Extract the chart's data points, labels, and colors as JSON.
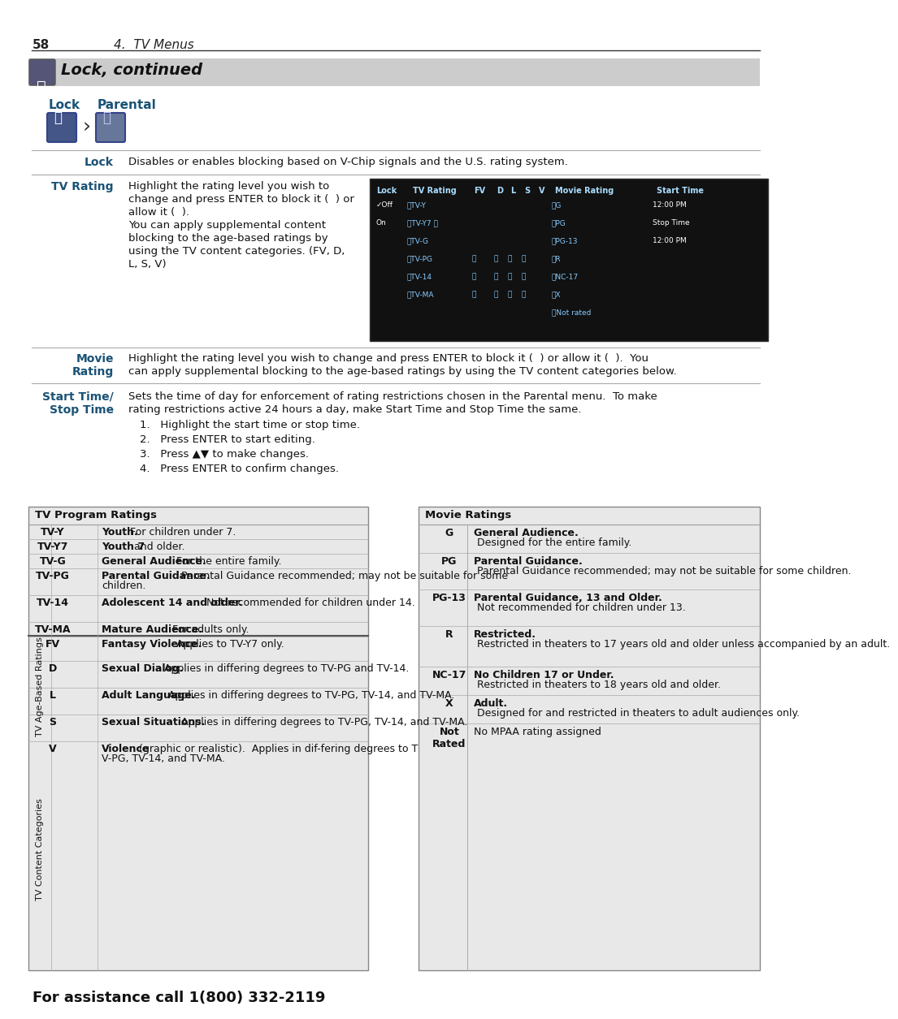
{
  "page_number": "58",
  "chapter": "4.  TV Menus",
  "section_title": "Lock, continued",
  "bg_color": "#ffffff",
  "header_bg": "#d8d8d8",
  "blue_color": "#1a5276",
  "dark_blue": "#1a3a5c",
  "subheader_bg": "#e8e8e8",
  "lock_label": "Lock",
  "parental_label": "Parental",
  "lock_text": "Disables or enables blocking based on V-Chip signals and the U.S. rating system.",
  "tv_rating_label": "TV Rating",
  "tv_rating_text1": "Highlight the rating level you wish to\nchange and press ENTER to block it (●) or\nallow it (●).\nYou can apply supplemental content\nblocking to the age-based ratings by\nusing the TV content categories. (FV, D,\nL, S, V)",
  "movie_rating_label": "Movie\nRating",
  "movie_rating_text": "Highlight the rating level you wish to change and press ENTER to block it (●) or allow it (●).  You\ncan apply supplemental blocking to the age-based ratings by using the TV content categories below.",
  "starttime_label": "Start Time/\nStop Time",
  "starttime_text": "Sets the time of day for enforcement of rating restrictions chosen in the Parental menu.  To make\nrating restrictions active 24 hours a day, make Start Time and Stop Time the same.",
  "steps": [
    "Highlight the start time or stop time.",
    "Press ENTER to start editing.",
    "Press ▲▼ to make changes.",
    "Press ENTER to confirm changes."
  ],
  "footer": "For assistance call 1(800) 332-2119",
  "tv_program_ratings_title": "TV Program Ratings",
  "tv_program_ratings": [
    {
      "code": "TV-Y",
      "desc_bold": "Youth.",
      "desc": " For children under 7.",
      "section": "age"
    },
    {
      "code": "TV-Y7",
      "desc_bold": "Youth 7",
      "desc": " and older.",
      "section": "age"
    },
    {
      "code": "TV-G",
      "desc_bold": "General Audience.",
      "desc": " For the entire family.",
      "section": "age"
    },
    {
      "code": "TV-PG",
      "desc_bold": "Parental Guidance.",
      "desc": " Parental Guidance recommended; may not be suitable for some children.",
      "section": "age"
    },
    {
      "code": "TV-14",
      "desc_bold": "Adolescent 14 and older.",
      "desc": " Not recommended for children under 14.",
      "section": "age"
    },
    {
      "code": "TV-MA",
      "desc_bold": "Mature Audience.",
      "desc": " For adults only.",
      "section": "age"
    },
    {
      "code": "FV",
      "desc_bold": "Fantasy Violence.",
      "desc": " Applies to TV-Y7 only.",
      "section": "content"
    },
    {
      "code": "D",
      "desc_bold": "Sexual Dialog.",
      "desc": " Applies in differing degrees to TV-PG and TV-14.",
      "section": "content"
    },
    {
      "code": "L",
      "desc_bold": "Adult Language.",
      "desc": " Applies in differing degrees to TV-PG, TV-14, and TV-MA.",
      "section": "content"
    },
    {
      "code": "S",
      "desc_bold": "Sexual Situations.",
      "desc": " Applies in differing degrees to TV-PG, TV-14, and TV-MA.",
      "section": "content"
    },
    {
      "code": "V",
      "desc_bold": "Violence",
      "desc": " (graphic or realistic).  Applies in dif-fering degrees to TV-PG, TV-14, and TV-MA.",
      "section": "content"
    }
  ],
  "age_section_label": "TV Age-Based Ratings",
  "content_section_label": "TV Content Categories",
  "movie_ratings_title": "Movie Ratings",
  "movie_ratings": [
    {
      "code": "G",
      "desc_bold": "General Audience.",
      "desc": " Designed for the entire family."
    },
    {
      "code": "PG",
      "desc_bold": "Parental Guidance.",
      "desc": " Parental Guidance recommended; may not be suitable for some children."
    },
    {
      "code": "PG-13",
      "desc_bold": "Parental Guidance, 13 and Older.",
      "desc": " Not recommended for children under 13."
    },
    {
      "code": "R",
      "desc_bold": "Restricted.",
      "desc": " Restricted in theaters to 17 years old and older unless accompanied by an adult."
    },
    {
      "code": "NC-17",
      "desc_bold": "No Children 17 or Under.",
      "desc": " Restricted in theaters to 18 years old and older."
    },
    {
      "code": "X",
      "desc_bold": "Adult.",
      "desc": " Designed for and restricted in theaters to adult audiences only."
    },
    {
      "code": "Not\nRated",
      "desc_bold": "",
      "desc": "No MPAA rating assigned"
    }
  ]
}
